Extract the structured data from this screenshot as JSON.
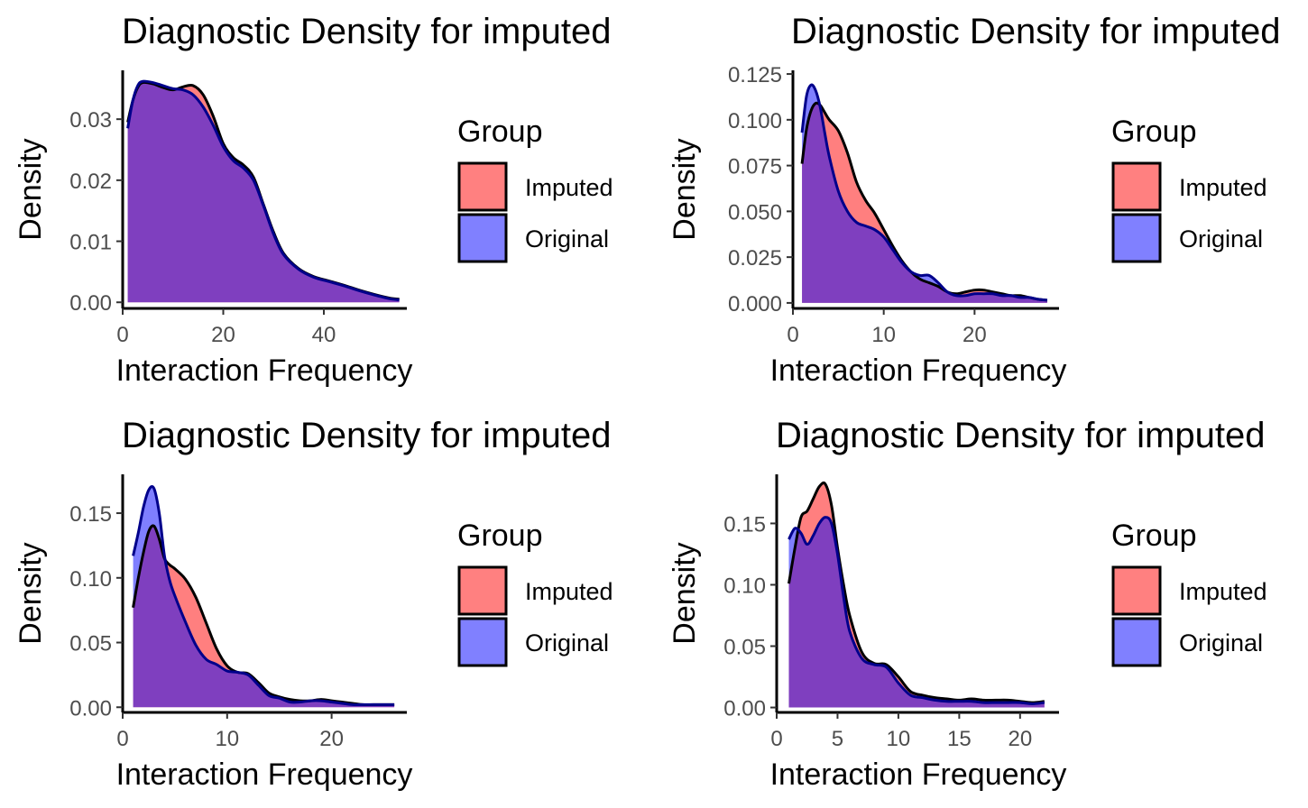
{
  "colors": {
    "imputed": "#ff0000",
    "original": "#0000ff",
    "imputed_key": "#ff8080",
    "original_key": "#8080ff",
    "axis": "#000000"
  },
  "chart_data": [
    {
      "type": "area",
      "title": "Diagnostic Density for imputed",
      "xlabel": "Interaction Frequency",
      "ylabel": "Density",
      "xlim": [
        0,
        56.5
      ],
      "ylim": [
        -0.001,
        0.038
      ],
      "xticks": [
        0,
        20,
        40
      ],
      "yticks": [
        0.0,
        0.01,
        0.02,
        0.03
      ],
      "ytick_labels": [
        "0.00",
        "0.01",
        "0.02",
        "0.03"
      ],
      "legend_title": "Group",
      "legend_placement": "right",
      "grid": false,
      "series": [
        {
          "name": "Imputed",
          "color_key": "imputed",
          "x": [
            1,
            2,
            3,
            4,
            6,
            8,
            10,
            12,
            14,
            16,
            18,
            20,
            22,
            24,
            26,
            28,
            30,
            32,
            35,
            38,
            41,
            44,
            47,
            50,
            53,
            55
          ],
          "y": [
            0.0295,
            0.033,
            0.0352,
            0.036,
            0.0358,
            0.0352,
            0.0348,
            0.0353,
            0.0355,
            0.034,
            0.0305,
            0.026,
            0.0237,
            0.0225,
            0.0205,
            0.016,
            0.0115,
            0.008,
            0.0055,
            0.0042,
            0.0035,
            0.0028,
            0.002,
            0.0013,
            0.0007,
            0.0005
          ]
        },
        {
          "name": "Original",
          "color_key": "original",
          "x": [
            1,
            2,
            3,
            4,
            6,
            8,
            10,
            12,
            14,
            16,
            18,
            20,
            22,
            24,
            26,
            28,
            30,
            32,
            35,
            38,
            41,
            44,
            47,
            50,
            53,
            55
          ],
          "y": [
            0.0285,
            0.033,
            0.0355,
            0.0362,
            0.036,
            0.0355,
            0.035,
            0.0348,
            0.034,
            0.032,
            0.029,
            0.0255,
            0.0232,
            0.022,
            0.02,
            0.0158,
            0.0112,
            0.0078,
            0.0054,
            0.0041,
            0.0034,
            0.0027,
            0.0019,
            0.0012,
            0.0006,
            0.0004
          ]
        }
      ]
    },
    {
      "type": "area",
      "title": "Diagnostic Density for imputed",
      "xlabel": "Interaction Frequency",
      "ylabel": "Density",
      "xlim": [
        0,
        29.3
      ],
      "ylim": [
        -0.003,
        0.127
      ],
      "xticks": [
        0,
        10,
        20
      ],
      "yticks": [
        0.0,
        0.025,
        0.05,
        0.075,
        0.1,
        0.125
      ],
      "ytick_labels": [
        "0.000",
        "0.025",
        "0.050",
        "0.075",
        "0.100",
        "0.125"
      ],
      "legend_title": "Group",
      "legend_placement": "right",
      "grid": false,
      "series": [
        {
          "name": "Imputed",
          "color_key": "imputed",
          "x": [
            1,
            1.5,
            2,
            2.5,
            3,
            3.5,
            4,
            5,
            6,
            7,
            8,
            9,
            10,
            11,
            12,
            13,
            14,
            15,
            16,
            17,
            18,
            19,
            20,
            21,
            22,
            23,
            24,
            25,
            26,
            27,
            28
          ],
          "y": [
            0.076,
            0.095,
            0.105,
            0.109,
            0.108,
            0.104,
            0.1,
            0.094,
            0.082,
            0.066,
            0.056,
            0.049,
            0.04,
            0.031,
            0.023,
            0.017,
            0.013,
            0.011,
            0.009,
            0.006,
            0.005,
            0.006,
            0.007,
            0.007,
            0.006,
            0.005,
            0.004,
            0.004,
            0.003,
            0.002,
            0.0015
          ]
        },
        {
          "name": "Original",
          "color_key": "original",
          "x": [
            1,
            1.5,
            2,
            2.5,
            3,
            3.5,
            4,
            5,
            6,
            7,
            8,
            9,
            10,
            11,
            12,
            13,
            14,
            15,
            16,
            17,
            18,
            19,
            20,
            21,
            22,
            23,
            24,
            25,
            26,
            27,
            28
          ],
          "y": [
            0.093,
            0.113,
            0.119,
            0.116,
            0.107,
            0.093,
            0.08,
            0.061,
            0.05,
            0.044,
            0.042,
            0.04,
            0.036,
            0.029,
            0.022,
            0.017,
            0.015,
            0.015,
            0.011,
            0.006,
            0.004,
            0.004,
            0.005,
            0.005,
            0.005,
            0.004,
            0.004,
            0.003,
            0.003,
            0.002,
            0.0015
          ]
        }
      ]
    },
    {
      "type": "area",
      "title": "Diagnostic Density for imputed",
      "xlabel": "Interaction Frequency",
      "ylabel": "Density",
      "xlim": [
        0,
        27.2
      ],
      "ylim": [
        -0.004,
        0.18
      ],
      "xticks": [
        0,
        10,
        20
      ],
      "yticks": [
        0.0,
        0.05,
        0.1,
        0.15
      ],
      "ytick_labels": [
        "0.00",
        "0.05",
        "0.10",
        "0.15"
      ],
      "legend_title": "Group",
      "legend_placement": "right",
      "grid": false,
      "series": [
        {
          "name": "Imputed",
          "color_key": "imputed",
          "x": [
            1,
            1.5,
            2,
            2.5,
            3,
            3.5,
            4,
            4.5,
            5,
            6,
            7,
            8,
            9,
            10,
            11,
            12,
            13,
            14,
            15,
            16,
            17,
            18,
            19,
            20,
            21,
            22,
            23,
            24,
            25,
            26
          ],
          "y": [
            0.077,
            0.1,
            0.12,
            0.136,
            0.14,
            0.13,
            0.115,
            0.11,
            0.107,
            0.099,
            0.085,
            0.065,
            0.045,
            0.032,
            0.027,
            0.026,
            0.019,
            0.011,
            0.008,
            0.006,
            0.005,
            0.005,
            0.006,
            0.005,
            0.004,
            0.003,
            0.002,
            0.002,
            0.002,
            0.002
          ]
        },
        {
          "name": "Original",
          "color_key": "original",
          "x": [
            1,
            1.5,
            2,
            2.5,
            3,
            3.5,
            4,
            4.5,
            5,
            6,
            7,
            8,
            9,
            10,
            11,
            12,
            13,
            14,
            15,
            16,
            17,
            18,
            19,
            20,
            21,
            22,
            23,
            24,
            25,
            26
          ],
          "y": [
            0.117,
            0.135,
            0.155,
            0.168,
            0.169,
            0.15,
            0.117,
            0.098,
            0.086,
            0.066,
            0.048,
            0.037,
            0.033,
            0.028,
            0.027,
            0.025,
            0.017,
            0.009,
            0.007,
            0.004,
            0.004,
            0.005,
            0.005,
            0.004,
            0.003,
            0.002,
            0.002,
            0.002,
            0.002,
            0.002
          ]
        }
      ]
    },
    {
      "type": "area",
      "title": "Diagnostic Density for imputed",
      "xlabel": "Interaction Frequency",
      "ylabel": "Density",
      "xlim": [
        0,
        23.2
      ],
      "ylim": [
        -0.004,
        0.19
      ],
      "xticks": [
        0,
        5,
        10,
        15,
        20
      ],
      "yticks": [
        0.0,
        0.05,
        0.1,
        0.15
      ],
      "ytick_labels": [
        "0.00",
        "0.05",
        "0.10",
        "0.15"
      ],
      "legend_title": "Group",
      "legend_placement": "right",
      "grid": false,
      "series": [
        {
          "name": "Imputed",
          "color_key": "imputed",
          "x": [
            1,
            1.5,
            2,
            2.5,
            3,
            3.5,
            4,
            4.5,
            5,
            5.5,
            6,
            7,
            8,
            9,
            10,
            11,
            12,
            13,
            14,
            15,
            16,
            17,
            18,
            19,
            20,
            21,
            22
          ],
          "y": [
            0.101,
            0.13,
            0.155,
            0.16,
            0.17,
            0.18,
            0.182,
            0.165,
            0.13,
            0.1,
            0.075,
            0.045,
            0.036,
            0.035,
            0.025,
            0.013,
            0.01,
            0.008,
            0.007,
            0.006,
            0.007,
            0.006,
            0.006,
            0.006,
            0.005,
            0.004,
            0.005
          ]
        },
        {
          "name": "Original",
          "color_key": "original",
          "x": [
            1,
            1.5,
            2,
            2.5,
            3,
            3.5,
            4,
            4.5,
            5,
            5.5,
            6,
            7,
            8,
            9,
            10,
            11,
            12,
            13,
            14,
            15,
            16,
            17,
            18,
            19,
            20,
            21,
            22
          ],
          "y": [
            0.137,
            0.146,
            0.142,
            0.133,
            0.14,
            0.15,
            0.155,
            0.15,
            0.125,
            0.09,
            0.062,
            0.04,
            0.035,
            0.033,
            0.02,
            0.01,
            0.008,
            0.006,
            0.005,
            0.005,
            0.005,
            0.004,
            0.004,
            0.004,
            0.004,
            0.003,
            0.004
          ]
        }
      ]
    }
  ]
}
